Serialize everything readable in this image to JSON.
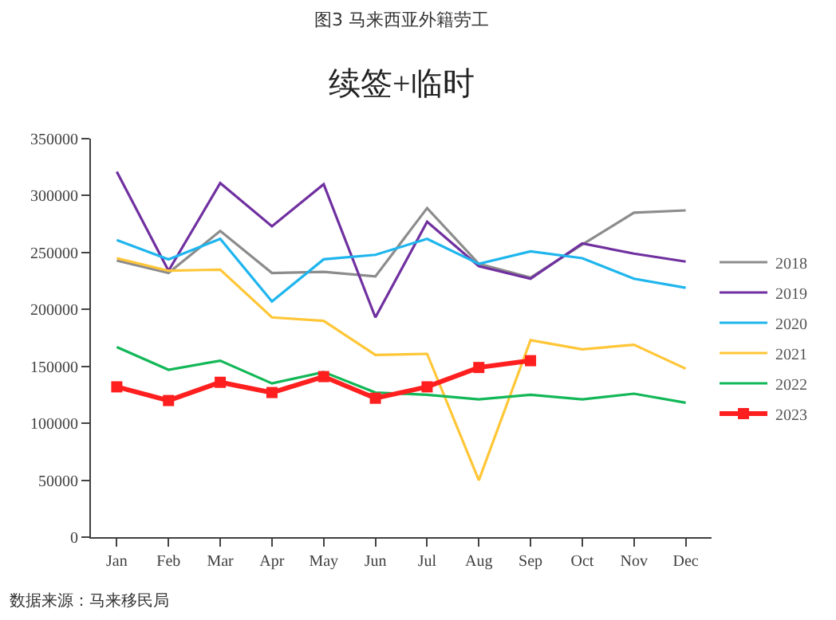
{
  "chart_data": {
    "type": "line",
    "title": "图3 马来西亚外籍劳工",
    "subtitle": "续签+临时",
    "categories": [
      "Jan",
      "Feb",
      "Mar",
      "Apr",
      "May",
      "Jun",
      "Jul",
      "Aug",
      "Sep",
      "Oct",
      "Nov",
      "Dec"
    ],
    "series": [
      {
        "name": "2018",
        "color": "#8c8c8c",
        "values": [
          243000,
          232000,
          269000,
          232000,
          233000,
          229000,
          289000,
          240000,
          228000,
          257000,
          285000,
          287000
        ]
      },
      {
        "name": "2019",
        "color": "#7030a0",
        "values": [
          321000,
          234000,
          311000,
          273000,
          310000,
          193000,
          277000,
          238000,
          227000,
          258000,
          249000,
          242000
        ]
      },
      {
        "name": "2020",
        "color": "#1fb5ed",
        "values": [
          261000,
          244000,
          262000,
          207000,
          244000,
          248000,
          262000,
          240000,
          251000,
          245000,
          227000,
          219000
        ]
      },
      {
        "name": "2021",
        "color": "#ffc637",
        "values": [
          245000,
          234000,
          235000,
          193000,
          190000,
          160000,
          161000,
          50000,
          173000,
          165000,
          169000,
          148000
        ]
      },
      {
        "name": "2022",
        "color": "#12b757",
        "values": [
          167000,
          147000,
          155000,
          135000,
          145000,
          127000,
          125000,
          121000,
          125000,
          121000,
          126000,
          118000
        ]
      },
      {
        "name": "2023",
        "color": "#ff1f1f",
        "marker": "square",
        "values": [
          132000,
          120000,
          136000,
          127000,
          141000,
          122000,
          132000,
          149000,
          155000,
          null,
          null,
          null
        ]
      }
    ],
    "ylim": [
      0,
      350000
    ],
    "yticks": [
      0,
      50000,
      100000,
      150000,
      200000,
      250000,
      300000,
      350000
    ],
    "legend": "right",
    "marker": "none",
    "line_style": "solid",
    "annotations": [
      "数据来源：马来移民局"
    ]
  }
}
